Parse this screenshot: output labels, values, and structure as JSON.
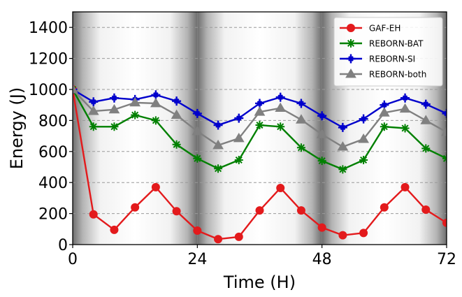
{
  "chart_data": {
    "type": "line",
    "title": "",
    "xlabel": "Time (H)",
    "ylabel": "Energy (J)",
    "xlim": [
      0,
      72
    ],
    "ylim": [
      0,
      1500
    ],
    "xticks": [
      0,
      24,
      48,
      72
    ],
    "yticks": [
      0,
      200,
      400,
      600,
      800,
      1000,
      1200,
      1400
    ],
    "xtick_labels": [
      "0",
      "24",
      "48",
      "72"
    ],
    "ytick_labels": [
      "0",
      "200",
      "400",
      "600",
      "800",
      "1000",
      "1200",
      "1400"
    ],
    "grid": "horizontal dashed",
    "legend_position": "top-right",
    "background": "day-night shading with dark bands at 0, 24, 48, 72 H",
    "x": [
      0,
      4,
      8,
      12,
      16,
      20,
      24,
      28,
      32,
      36,
      40,
      44,
      48,
      52,
      56,
      60,
      64,
      68,
      72
    ],
    "series": [
      {
        "name": "GAF-EH",
        "color": "#e31a1c",
        "marker": "circle",
        "values": [
          1000,
          195,
          95,
          240,
          370,
          215,
          90,
          35,
          50,
          220,
          365,
          220,
          110,
          60,
          75,
          240,
          370,
          225,
          140
        ]
      },
      {
        "name": "REBORN-BAT",
        "color": "#008000",
        "marker": "asterisk",
        "values": [
          1000,
          760,
          760,
          835,
          800,
          645,
          555,
          490,
          545,
          770,
          760,
          625,
          540,
          485,
          545,
          760,
          750,
          620,
          555
        ]
      },
      {
        "name": "REBORN-SI",
        "color": "#0000cc",
        "marker": "plus-star",
        "values": [
          1000,
          920,
          945,
          935,
          965,
          925,
          845,
          770,
          815,
          910,
          950,
          910,
          830,
          755,
          810,
          900,
          945,
          905,
          845
        ]
      },
      {
        "name": "REBORN-both",
        "color": "#808080",
        "marker": "triangle",
        "values": [
          1000,
          860,
          870,
          915,
          910,
          835,
          730,
          640,
          685,
          855,
          880,
          805,
          710,
          630,
          680,
          850,
          875,
          800,
          725
        ]
      }
    ]
  }
}
